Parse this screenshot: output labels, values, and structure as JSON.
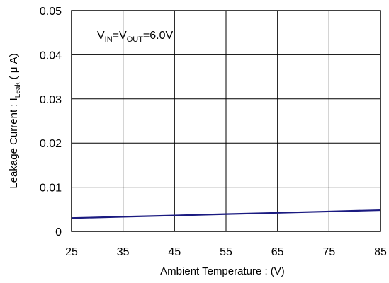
{
  "chart_data": {
    "type": "line",
    "title": "",
    "xlabel": "Ambient Temperature : (V)",
    "ylabel": {
      "main": "Leakage Current : I",
      "sub": "Leak",
      "tail": " ( μ A)"
    },
    "xlim": [
      25,
      85
    ],
    "ylim": [
      0,
      0.05
    ],
    "x_ticks": [
      "25",
      "35",
      "45",
      "55",
      "65",
      "75",
      "85"
    ],
    "y_ticks": [
      "0",
      "0.01",
      "0.02",
      "0.03",
      "0.04",
      "0.05"
    ],
    "grid": true,
    "legend": "none",
    "annotation": {
      "v1": "V",
      "s1": "IN",
      "eq1": "=V",
      "s2": "OUT",
      "eq2": "=6.0V"
    },
    "series": [
      {
        "color": "#1a1a80",
        "x": [
          25,
          35,
          45,
          55,
          65,
          75,
          85
        ],
        "y": [
          0.003,
          0.0033,
          0.0036,
          0.0039,
          0.0042,
          0.0045,
          0.0048
        ]
      }
    ]
  }
}
